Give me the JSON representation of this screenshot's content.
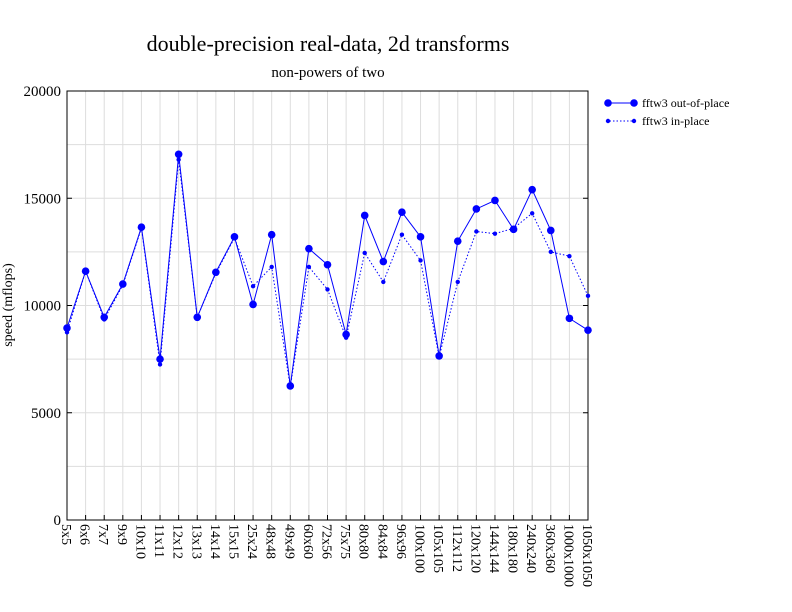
{
  "chart_data": {
    "type": "line",
    "title": "double-precision real-data, 2d transforms",
    "subtitle": "non-powers of two",
    "xlabel": "",
    "ylabel": "speed (mflops)",
    "ylim": [
      0,
      20000
    ],
    "yticks": [
      "0",
      "5000",
      "10000",
      "15000",
      "20000"
    ],
    "grid": true,
    "legend_position": "right",
    "categories": [
      "5x5",
      "6x6",
      "7x7",
      "9x9",
      "10x10",
      "11x11",
      "12x12",
      "13x13",
      "14x14",
      "15x15",
      "25x24",
      "48x48",
      "49x49",
      "60x60",
      "72x56",
      "75x75",
      "80x80",
      "84x84",
      "96x96",
      "100x100",
      "105x105",
      "112x112",
      "120x120",
      "144x144",
      "180x180",
      "240x240",
      "360x360",
      "1000x1000",
      "1050x1050"
    ],
    "series": [
      {
        "name": "fftw3 out-of-place",
        "color": "#0000ff",
        "style": "solid",
        "values": [
          8950,
          11600,
          9450,
          11000,
          13650,
          7500,
          17050,
          9450,
          11550,
          13200,
          10050,
          13300,
          6250,
          12650,
          11900,
          8650,
          14200,
          12050,
          14350,
          13200,
          7650,
          13000,
          14500,
          14900,
          13550,
          15400,
          13500,
          9400,
          8850
        ]
      },
      {
        "name": "fftw3 in-place",
        "color": "#0000ff",
        "style": "dotted",
        "values": [
          8750,
          11600,
          9350,
          10950,
          13600,
          7250,
          16800,
          9450,
          11500,
          13150,
          10900,
          11800,
          6200,
          11800,
          10750,
          8500,
          12450,
          11100,
          13300,
          12100,
          7600,
          11100,
          13450,
          13350,
          13600,
          14300,
          12500,
          12300,
          10450
        ]
      }
    ]
  }
}
